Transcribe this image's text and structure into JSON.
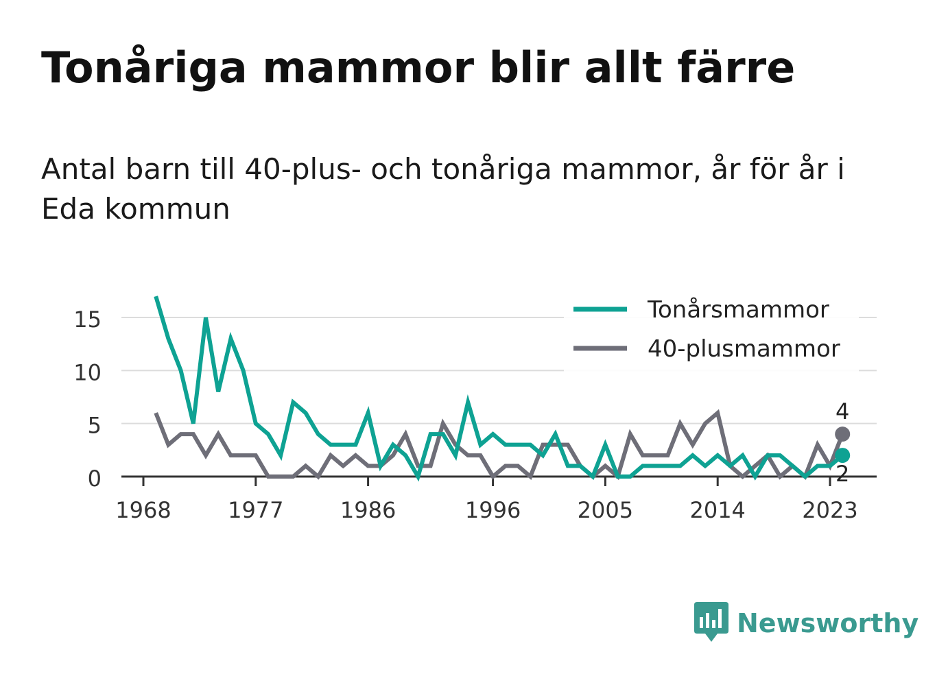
{
  "header": {
    "title": "Tonåriga mammor blir allt färre",
    "subtitle": "Antal barn till 40-plus- och tonåriga mammor, år för år i Eda kommun"
  },
  "brand": {
    "name": "Newsworthy",
    "icon": "newsworthy-logo-icon",
    "color": "#3a9a90"
  },
  "chart_data": {
    "type": "line",
    "title": "Tonåriga mammor blir allt färre",
    "subtitle": "Antal barn till 40-plus- och tonåriga mammor, år för år i Eda kommun",
    "xlabel": "",
    "ylabel": "",
    "xlim": [
      1967,
      2026
    ],
    "ylim": [
      0,
      17.5
    ],
    "x_ticks": [
      1968,
      1977,
      1986,
      1996,
      2005,
      2014,
      2023
    ],
    "y_ticks": [
      0,
      5,
      10,
      15
    ],
    "grid": "horizontal",
    "legend": "top-right",
    "x": [
      1969,
      1970,
      1971,
      1972,
      1973,
      1974,
      1975,
      1976,
      1977,
      1978,
      1979,
      1980,
      1981,
      1982,
      1983,
      1984,
      1985,
      1986,
      1987,
      1988,
      1989,
      1990,
      1991,
      1992,
      1993,
      1994,
      1995,
      1996,
      1997,
      1998,
      1999,
      2000,
      2001,
      2002,
      2003,
      2004,
      2005,
      2006,
      2007,
      2008,
      2009,
      2010,
      2011,
      2012,
      2013,
      2014,
      2015,
      2016,
      2017,
      2018,
      2019,
      2020,
      2021,
      2022,
      2023,
      2024
    ],
    "series": [
      {
        "name": "Tonårsmammor",
        "color": "#0ea293",
        "end_label": "2",
        "values": [
          17,
          13,
          10,
          5,
          15,
          8,
          13,
          10,
          5,
          4,
          2,
          7,
          6,
          4,
          3,
          3,
          3,
          6,
          1,
          3,
          2,
          0,
          4,
          4,
          2,
          7,
          3,
          4,
          3,
          3,
          3,
          2,
          4,
          1,
          1,
          0,
          3,
          0,
          0,
          1,
          1,
          1,
          1,
          2,
          1,
          2,
          1,
          2,
          0,
          2,
          2,
          1,
          0,
          1,
          1,
          2
        ]
      },
      {
        "name": "40-plusmammor",
        "color": "#6e6e78",
        "end_label": "4",
        "values": [
          6,
          3,
          4,
          4,
          2,
          4,
          2,
          2,
          2,
          0,
          0,
          0,
          1,
          0,
          2,
          1,
          2,
          1,
          1,
          2,
          4,
          1,
          1,
          5,
          3,
          2,
          2,
          0,
          1,
          1,
          0,
          3,
          3,
          3,
          1,
          0,
          1,
          0,
          4,
          2,
          2,
          2,
          5,
          3,
          5,
          6,
          1,
          0,
          1,
          2,
          0,
          1,
          0,
          3,
          1,
          4
        ]
      }
    ]
  }
}
